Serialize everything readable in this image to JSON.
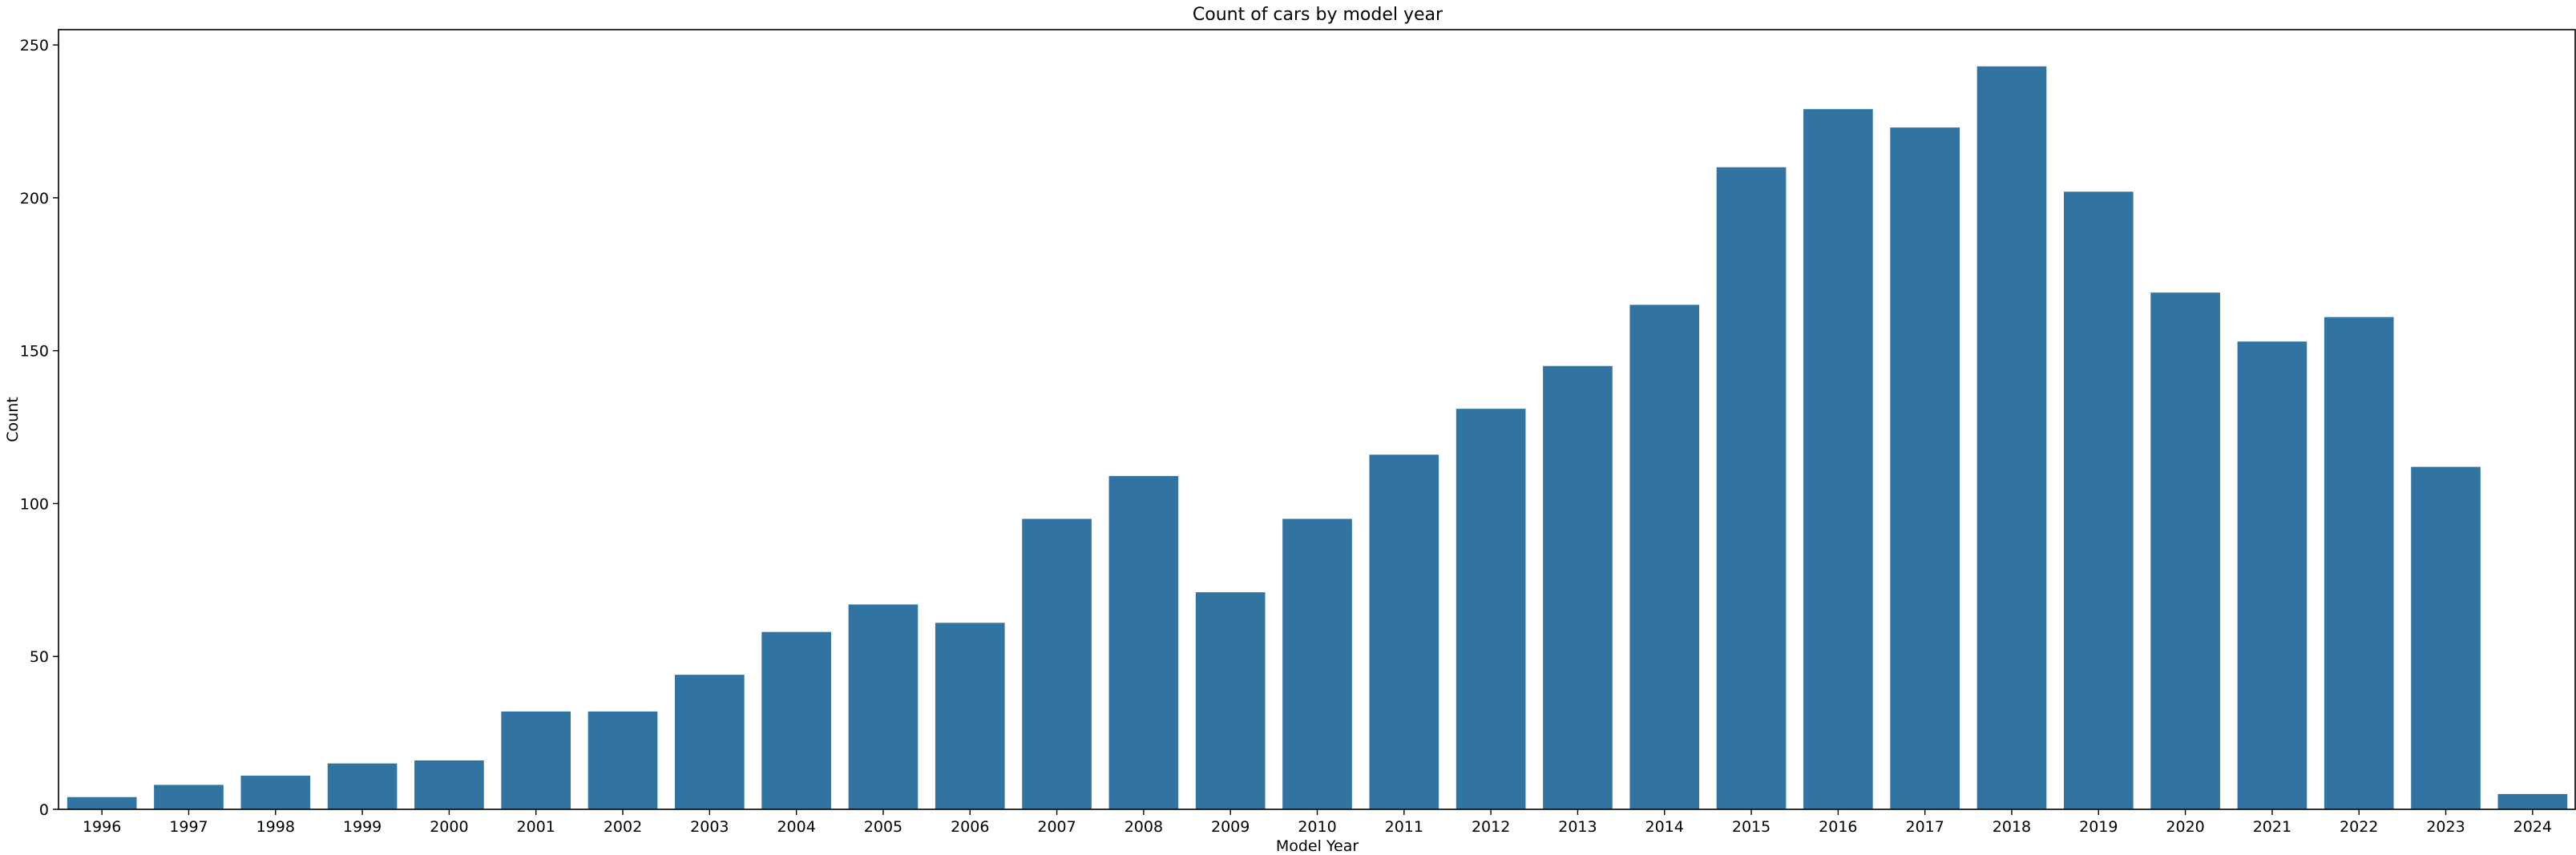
{
  "chart_data": {
    "type": "bar",
    "title": "Count of cars by model year",
    "xlabel": "Model Year",
    "ylabel": "Count",
    "categories": [
      "1996",
      "1997",
      "1998",
      "1999",
      "2000",
      "2001",
      "2002",
      "2003",
      "2004",
      "2005",
      "2006",
      "2007",
      "2008",
      "2009",
      "2010",
      "2011",
      "2012",
      "2013",
      "2014",
      "2015",
      "2016",
      "2017",
      "2018",
      "2019",
      "2020",
      "2021",
      "2022",
      "2023",
      "2024"
    ],
    "values": [
      4,
      8,
      11,
      15,
      16,
      32,
      32,
      44,
      58,
      67,
      61,
      95,
      109,
      71,
      95,
      116,
      131,
      145,
      165,
      210,
      229,
      223,
      243,
      202,
      169,
      153,
      161,
      112,
      5
    ],
    "ylim": [
      0,
      255
    ],
    "yticks": [
      0,
      50,
      100,
      150,
      200,
      250
    ],
    "grid": false,
    "legend": "none",
    "bar_color": "#3274a1"
  }
}
